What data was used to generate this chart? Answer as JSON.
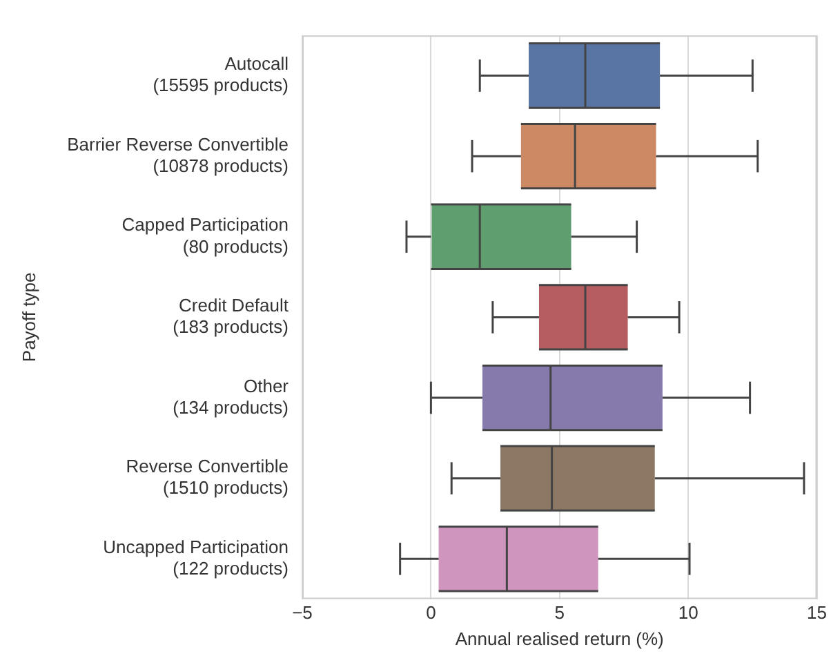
{
  "chart_data": {
    "type": "box",
    "orientation": "horizontal",
    "categories": [
      "Autocall\n(15595 products)",
      "Barrier Reverse Convertible\n(10878 products)",
      "Capped Participation\n(80 products)",
      "Credit Default\n(183 products)",
      "Other\n(134 products)",
      "Reverse Convertible\n(1510 products)",
      "Uncapped Participation\n(122 products)"
    ],
    "boxes": [
      {
        "low": 1.9,
        "q1": 3.8,
        "median": 6.0,
        "q3": 8.9,
        "high": 12.5
      },
      {
        "low": 1.6,
        "q1": 3.5,
        "median": 5.6,
        "q3": 8.75,
        "high": 12.7
      },
      {
        "low": -0.95,
        "q1": 0,
        "median": 1.9,
        "q3": 5.45,
        "high": 8.0
      },
      {
        "low": 2.4,
        "q1": 4.2,
        "median": 6.0,
        "q3": 7.65,
        "high": 9.65
      },
      {
        "low": 0,
        "q1": 2.0,
        "median": 4.65,
        "q3": 9.0,
        "high": 12.4
      },
      {
        "low": 0.8,
        "q1": 2.7,
        "median": 4.7,
        "q3": 8.7,
        "high": 14.5
      },
      {
        "low": -1.2,
        "q1": 0.3,
        "median": 2.95,
        "q3": 6.5,
        "high": 10.05
      }
    ],
    "colors": [
      "#5875a4",
      "#cc8963",
      "#5f9e6e",
      "#b55d60",
      "#857aab",
      "#8d7866",
      "#d095bf"
    ],
    "xlim": [
      -5,
      15
    ],
    "xticks": [
      -5,
      0,
      5,
      10,
      15
    ],
    "xlabel": "Annual realised return (%)",
    "ylabel": "Payoff type",
    "grid": "x",
    "legend": false
  }
}
